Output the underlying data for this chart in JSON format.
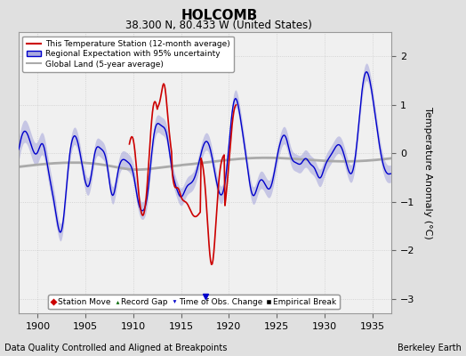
{
  "title": "HOLCOMB",
  "subtitle": "38.300 N, 80.433 W (United States)",
  "xlabel_left": "Data Quality Controlled and Aligned at Breakpoints",
  "xlabel_right": "Berkeley Earth",
  "ylabel": "Temperature Anomaly (°C)",
  "xlim": [
    1898,
    1937
  ],
  "ylim": [
    -3.3,
    2.5
  ],
  "yticks": [
    -3,
    -2,
    -1,
    0,
    1,
    2
  ],
  "xticks": [
    1900,
    1905,
    1910,
    1915,
    1920,
    1925,
    1930,
    1935
  ],
  "bg_color": "#e0e0e0",
  "plot_bg_color": "#f0f0f0",
  "regional_color": "#0000cc",
  "regional_fill_color": "#aaaadd",
  "station_color": "#cc0000",
  "global_color": "#aaaaaa",
  "legend_items": [
    {
      "label": "This Temperature Station (12-month average)",
      "color": "#cc0000"
    },
    {
      "label": "Regional Expectation with 95% uncertainty",
      "color": "#0000cc",
      "fill": "#aaaadd"
    },
    {
      "label": "Global Land (5-year average)",
      "color": "#aaaaaa"
    }
  ],
  "marker_items": [
    {
      "label": "Station Move",
      "color": "#cc0000",
      "marker": "D"
    },
    {
      "label": "Record Gap",
      "color": "#006600",
      "marker": "^"
    },
    {
      "label": "Time of Obs. Change",
      "color": "#0000cc",
      "marker": "v"
    },
    {
      "label": "Empirical Break",
      "color": "#000000",
      "marker": "s"
    }
  ],
  "obs_change_x": 1917.5
}
